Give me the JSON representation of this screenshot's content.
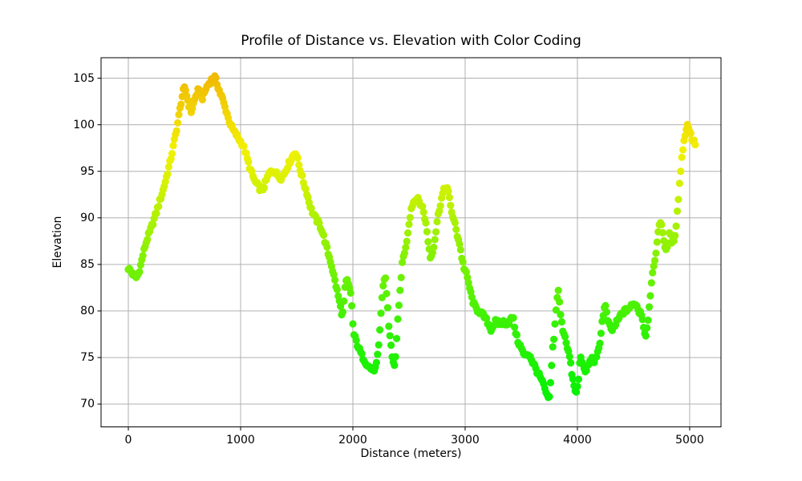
{
  "chart_data": {
    "type": "scatter",
    "title": "Profile of Distance vs. Elevation with Color Coding",
    "xlabel": "Distance (meters)",
    "ylabel": "Elevation",
    "x_ticks": [
      0,
      1000,
      2000,
      3000,
      4000,
      5000
    ],
    "y_ticks": [
      70,
      75,
      80,
      85,
      90,
      95,
      100,
      105
    ],
    "xlim": [
      -243,
      5279
    ],
    "ylim": [
      67.55,
      107.2
    ],
    "grid": true,
    "grid_color": "#b0b0b0",
    "spine_color": "#000000",
    "background_color": "#ffffff",
    "marker_diameter_px": 9.2,
    "sample_step_m": 10,
    "elevation_min": 70.3,
    "elevation_max": 105.1,
    "color_mapping": {
      "by": "elevation",
      "description": "green at low elevation through yellow to orange at high elevation",
      "hue_stops": [
        [
          70.3,
          120
        ],
        [
          78,
          108
        ],
        [
          85,
          90
        ],
        [
          95,
          64
        ],
        [
          105.1,
          46
        ]
      ],
      "saturation_pct": 97,
      "lightness_pct": 48,
      "low_color": "#0ae500",
      "mid_color": "#e8f400",
      "high_color": "#f2c400"
    },
    "waypoints": [
      [
        0,
        84.6
      ],
      [
        25,
        84.2
      ],
      [
        45,
        83.9
      ],
      [
        70,
        83.6
      ],
      [
        90,
        84.0
      ],
      [
        110,
        84.9
      ],
      [
        130,
        86.0
      ],
      [
        150,
        87.0
      ],
      [
        170,
        87.8
      ],
      [
        195,
        88.6
      ],
      [
        220,
        89.5
      ],
      [
        250,
        90.6
      ],
      [
        280,
        91.8
      ],
      [
        310,
        93.0
      ],
      [
        340,
        94.4
      ],
      [
        370,
        95.9
      ],
      [
        395,
        97.3
      ],
      [
        420,
        98.9
      ],
      [
        440,
        100.2
      ],
      [
        455,
        101.3
      ],
      [
        470,
        102.4
      ],
      [
        485,
        103.4
      ],
      [
        497,
        103.9
      ],
      [
        510,
        103.7
      ],
      [
        525,
        102.9
      ],
      [
        542,
        102.0
      ],
      [
        557,
        101.3
      ],
      [
        572,
        101.9
      ],
      [
        588,
        102.6
      ],
      [
        605,
        103.2
      ],
      [
        622,
        103.7
      ],
      [
        638,
        103.4
      ],
      [
        655,
        102.8
      ],
      [
        670,
        103.1
      ],
      [
        688,
        103.8
      ],
      [
        705,
        104.2
      ],
      [
        722,
        104.5
      ],
      [
        740,
        104.8
      ],
      [
        758,
        105.0
      ],
      [
        772,
        105.1
      ],
      [
        788,
        104.5
      ],
      [
        802,
        104.0
      ],
      [
        818,
        103.4
      ],
      [
        833,
        103.0
      ],
      [
        848,
        102.4
      ],
      [
        862,
        101.8
      ],
      [
        876,
        101.4
      ],
      [
        890,
        100.7
      ],
      [
        905,
        100.2
      ],
      [
        922,
        99.7
      ],
      [
        940,
        99.3
      ],
      [
        958,
        99.0
      ],
      [
        978,
        98.6
      ],
      [
        1000,
        98.2
      ],
      [
        1022,
        97.8
      ],
      [
        1042,
        97.1
      ],
      [
        1062,
        96.2
      ],
      [
        1082,
        95.4
      ],
      [
        1105,
        94.6
      ],
      [
        1128,
        93.9
      ],
      [
        1152,
        93.5
      ],
      [
        1175,
        93.1
      ],
      [
        1200,
        93.1
      ],
      [
        1225,
        93.9
      ],
      [
        1248,
        94.6
      ],
      [
        1270,
        95.0
      ],
      [
        1292,
        95.1
      ],
      [
        1315,
        94.8
      ],
      [
        1338,
        94.5
      ],
      [
        1360,
        94.3
      ],
      [
        1382,
        94.6
      ],
      [
        1405,
        95.2
      ],
      [
        1428,
        95.8
      ],
      [
        1450,
        96.3
      ],
      [
        1472,
        96.8
      ],
      [
        1492,
        97.1
      ],
      [
        1510,
        96.2
      ],
      [
        1528,
        95.3
      ],
      [
        1548,
        94.4
      ],
      [
        1568,
        93.5
      ],
      [
        1588,
        92.8
      ],
      [
        1608,
        91.8
      ],
      [
        1630,
        90.9
      ],
      [
        1652,
        90.3
      ],
      [
        1675,
        89.8
      ],
      [
        1698,
        89.4
      ],
      [
        1720,
        88.8
      ],
      [
        1742,
        87.9
      ],
      [
        1762,
        87.0
      ],
      [
        1782,
        86.1
      ],
      [
        1800,
        85.4
      ],
      [
        1818,
        84.5
      ],
      [
        1835,
        83.5
      ],
      [
        1852,
        82.6
      ],
      [
        1868,
        81.7
      ],
      [
        1882,
        80.9
      ],
      [
        1896,
        80.0
      ],
      [
        1908,
        79.5
      ],
      [
        1920,
        81.0
      ],
      [
        1932,
        82.6
      ],
      [
        1945,
        83.4
      ],
      [
        1958,
        82.9
      ],
      [
        1972,
        82.2
      ],
      [
        1985,
        81.7
      ],
      [
        1995,
        79.5
      ],
      [
        2005,
        77.6
      ],
      [
        2020,
        77.1
      ],
      [
        2040,
        76.4
      ],
      [
        2060,
        75.8
      ],
      [
        2080,
        75.2
      ],
      [
        2100,
        74.8
      ],
      [
        2125,
        74.3
      ],
      [
        2150,
        73.9
      ],
      [
        2175,
        73.7
      ],
      [
        2200,
        73.8
      ],
      [
        2215,
        74.6
      ],
      [
        2228,
        75.9
      ],
      [
        2240,
        77.8
      ],
      [
        2252,
        80.1
      ],
      [
        2263,
        82.0
      ],
      [
        2275,
        83.2
      ],
      [
        2288,
        83.7
      ],
      [
        2300,
        82.0
      ],
      [
        2310,
        80.3
      ],
      [
        2320,
        78.4
      ],
      [
        2332,
        77.3
      ],
      [
        2344,
        75.6
      ],
      [
        2356,
        74.5
      ],
      [
        2368,
        74.1
      ],
      [
        2380,
        75.2
      ],
      [
        2390,
        77.0
      ],
      [
        2400,
        78.9
      ],
      [
        2410,
        80.4
      ],
      [
        2420,
        82.1
      ],
      [
        2430,
        83.8
      ],
      [
        2442,
        85.2
      ],
      [
        2455,
        86.2
      ],
      [
        2470,
        86.7
      ],
      [
        2482,
        87.8
      ],
      [
        2495,
        89.0
      ],
      [
        2508,
        90.1
      ],
      [
        2520,
        91.0
      ],
      [
        2535,
        91.6
      ],
      [
        2552,
        91.9
      ],
      [
        2570,
        92.1
      ],
      [
        2588,
        91.8
      ],
      [
        2605,
        91.4
      ],
      [
        2622,
        91.1
      ],
      [
        2638,
        90.2
      ],
      [
        2652,
        89.2
      ],
      [
        2665,
        88.0
      ],
      [
        2678,
        86.8
      ],
      [
        2690,
        85.8
      ],
      [
        2702,
        86.0
      ],
      [
        2715,
        86.7
      ],
      [
        2728,
        87.6
      ],
      [
        2740,
        88.6
      ],
      [
        2752,
        89.8
      ],
      [
        2765,
        90.6
      ],
      [
        2778,
        91.4
      ],
      [
        2790,
        92.1
      ],
      [
        2805,
        92.8
      ],
      [
        2822,
        93.2
      ],
      [
        2838,
        93.3
      ],
      [
        2852,
        92.6
      ],
      [
        2865,
        91.6
      ],
      [
        2878,
        90.8
      ],
      [
        2895,
        89.9
      ],
      [
        2912,
        89.2
      ],
      [
        2928,
        88.2
      ],
      [
        2942,
        87.7
      ],
      [
        2958,
        86.7
      ],
      [
        2972,
        85.6
      ],
      [
        2988,
        84.7
      ],
      [
        3005,
        84.2
      ],
      [
        3022,
        83.4
      ],
      [
        3038,
        82.6
      ],
      [
        3055,
        81.6
      ],
      [
        3072,
        80.9
      ],
      [
        3090,
        80.4
      ],
      [
        3110,
        80.1
      ],
      [
        3132,
        79.9
      ],
      [
        3155,
        79.6
      ],
      [
        3180,
        79.2
      ],
      [
        3205,
        78.7
      ],
      [
        3228,
        78.0
      ],
      [
        3250,
        78.4
      ],
      [
        3272,
        78.9
      ],
      [
        3295,
        78.7
      ],
      [
        3318,
        78.6
      ],
      [
        3340,
        78.8
      ],
      [
        3362,
        78.7
      ],
      [
        3385,
        78.7
      ],
      [
        3408,
        79.1
      ],
      [
        3425,
        79.4
      ],
      [
        3445,
        78.0
      ],
      [
        3465,
        76.9
      ],
      [
        3488,
        76.3
      ],
      [
        3510,
        75.7
      ],
      [
        3532,
        75.1
      ],
      [
        3555,
        75.4
      ],
      [
        3578,
        75.2
      ],
      [
        3600,
        74.5
      ],
      [
        3622,
        74.0
      ],
      [
        3645,
        73.4
      ],
      [
        3668,
        72.9
      ],
      [
        3690,
        72.3
      ],
      [
        3710,
        71.6
      ],
      [
        3728,
        70.9
      ],
      [
        3745,
        70.3
      ],
      [
        3758,
        71.8
      ],
      [
        3768,
        73.6
      ],
      [
        3778,
        75.8
      ],
      [
        3788,
        76.9
      ],
      [
        3798,
        78.2
      ],
      [
        3808,
        79.9
      ],
      [
        3818,
        81.3
      ],
      [
        3828,
        82.3
      ],
      [
        3840,
        80.9
      ],
      [
        3852,
        79.4
      ],
      [
        3865,
        78.2
      ],
      [
        3878,
        77.7
      ],
      [
        3892,
        77.2
      ],
      [
        3905,
        76.4
      ],
      [
        3918,
        75.7
      ],
      [
        3932,
        75.0
      ],
      [
        3945,
        73.7
      ],
      [
        3958,
        72.7
      ],
      [
        3970,
        71.9
      ],
      [
        3982,
        71.2
      ],
      [
        3995,
        71.4
      ],
      [
        4008,
        72.4
      ],
      [
        4020,
        74.3
      ],
      [
        4032,
        75.3
      ],
      [
        4045,
        74.4
      ],
      [
        4058,
        73.6
      ],
      [
        4072,
        73.4
      ],
      [
        4085,
        73.9
      ],
      [
        4100,
        74.3
      ],
      [
        4118,
        74.6
      ],
      [
        4135,
        74.9
      ],
      [
        4152,
        74.6
      ],
      [
        4170,
        74.9
      ],
      [
        4188,
        75.9
      ],
      [
        4205,
        77.1
      ],
      [
        4220,
        78.8
      ],
      [
        4235,
        80.1
      ],
      [
        4248,
        80.6
      ],
      [
        4260,
        79.7
      ],
      [
        4272,
        78.9
      ],
      [
        4288,
        78.3
      ],
      [
        4305,
        77.9
      ],
      [
        4322,
        78.2
      ],
      [
        4342,
        78.6
      ],
      [
        4365,
        79.1
      ],
      [
        4388,
        79.6
      ],
      [
        4412,
        79.9
      ],
      [
        4435,
        80.1
      ],
      [
        4458,
        80.3
      ],
      [
        4480,
        80.5
      ],
      [
        4502,
        80.7
      ],
      [
        4518,
        80.9
      ],
      [
        4532,
        80.4
      ],
      [
        4548,
        79.9
      ],
      [
        4562,
        80.0
      ],
      [
        4578,
        79.3
      ],
      [
        4592,
        78.2
      ],
      [
        4605,
        77.3
      ],
      [
        4618,
        77.9
      ],
      [
        4630,
        79.2
      ],
      [
        4642,
        80.9
      ],
      [
        4655,
        82.4
      ],
      [
        4668,
        83.7
      ],
      [
        4680,
        84.6
      ],
      [
        4692,
        85.7
      ],
      [
        4705,
        86.9
      ],
      [
        4718,
        88.1
      ],
      [
        4730,
        89.3
      ],
      [
        4742,
        89.7
      ],
      [
        4755,
        89.0
      ],
      [
        4768,
        87.8
      ],
      [
        4780,
        86.8
      ],
      [
        4792,
        86.3
      ],
      [
        4805,
        87.1
      ],
      [
        4818,
        88.2
      ],
      [
        4830,
        88.0
      ],
      [
        4842,
        87.4
      ],
      [
        4855,
        87.4
      ],
      [
        4868,
        88.1
      ],
      [
        4880,
        89.3
      ],
      [
        4892,
        90.9
      ],
      [
        4902,
        92.4
      ],
      [
        4912,
        94.0
      ],
      [
        4922,
        95.4
      ],
      [
        4932,
        96.6
      ],
      [
        4942,
        97.7
      ],
      [
        4952,
        98.5
      ],
      [
        4962,
        99.1
      ],
      [
        4974,
        99.7
      ],
      [
        4985,
        100.1
      ],
      [
        4995,
        99.6
      ],
      [
        5008,
        99.0
      ],
      [
        5020,
        98.5
      ],
      [
        5035,
        98.2
      ],
      [
        5050,
        98.0
      ]
    ]
  }
}
